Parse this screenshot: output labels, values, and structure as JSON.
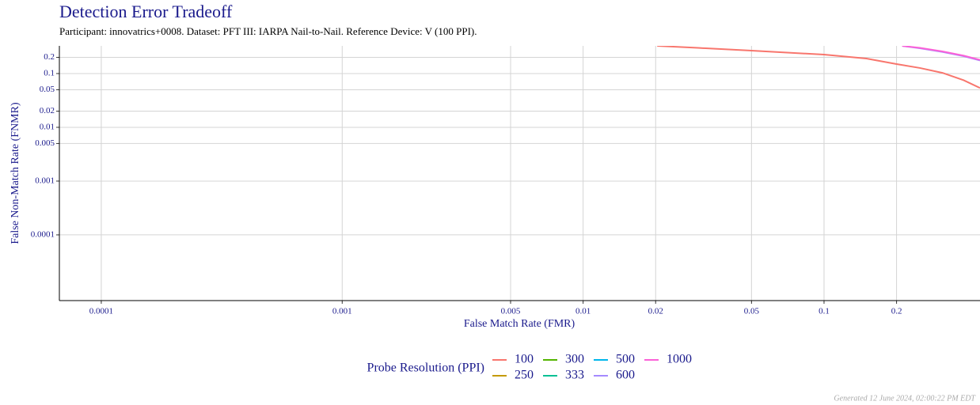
{
  "chart_data": {
    "type": "line",
    "title": "Detection Error Tradeoff",
    "subtitle": "Participant: innovatrics+0008. Dataset: PFT III: IARPA Nail-to-Nail. Reference Device: V (100 PPI).",
    "xlabel": "False Match Rate (FMR)",
    "ylabel": "False Non-Match Rate (FNMR)",
    "legend_title": "Probe Resolution (PPI)",
    "xscale": "log",
    "yscale": "log",
    "grid": true,
    "xlim": [
      6.7e-05,
      0.444
    ],
    "ylim": [
      6e-06,
      0.327
    ],
    "xticks": [
      0.0001,
      0.001,
      0.005,
      0.01,
      0.02,
      0.05,
      0.1,
      0.2
    ],
    "yticks": [
      0.0001,
      0.001,
      0.005,
      0.01,
      0.02,
      0.05,
      0.1,
      0.2
    ],
    "series": [
      {
        "name": "100",
        "color": "#F8766D",
        "x": [
          0.0203,
          0.03,
          0.05,
          0.1,
          0.15,
          0.2,
          0.25,
          0.31,
          0.38,
          0.444
        ],
        "values": [
          0.327,
          0.3,
          0.267,
          0.225,
          0.19,
          0.15,
          0.127,
          0.103,
          0.075,
          0.054
        ]
      },
      {
        "name": "250",
        "color": "#C49A00",
        "x": [],
        "values": []
      },
      {
        "name": "300",
        "color": "#53B400",
        "x": [],
        "values": []
      },
      {
        "name": "333",
        "color": "#00C094",
        "x": [],
        "values": []
      },
      {
        "name": "500",
        "color": "#00B6EB",
        "x": [],
        "values": []
      },
      {
        "name": "600",
        "color": "#A58AFF",
        "x": [
          0.211,
          0.25,
          0.31,
          0.38,
          0.444
        ],
        "values": [
          0.327,
          0.295,
          0.252,
          0.21,
          0.175
        ]
      },
      {
        "name": "1000",
        "color": "#FB61D7",
        "x": [
          0.211,
          0.25,
          0.31,
          0.38,
          0.444
        ],
        "values": [
          0.327,
          0.3,
          0.258,
          0.215,
          0.18
        ]
      }
    ]
  },
  "footer": "Generated 12 June 2024, 02:00:22 PM EDT"
}
